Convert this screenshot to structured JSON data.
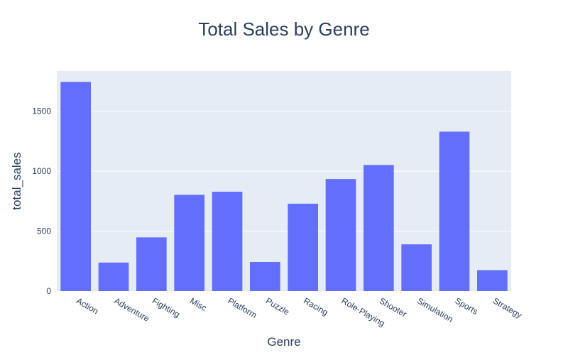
{
  "chart_data": {
    "type": "bar",
    "title": "Total Sales by Genre",
    "xlabel": "Genre",
    "ylabel": "total_sales",
    "categories": [
      "Action",
      "Adventure",
      "Fighting",
      "Misc",
      "Platform",
      "Puzzle",
      "Racing",
      "Role-Playing",
      "Shooter",
      "Simulation",
      "Sports",
      "Strategy"
    ],
    "values": [
      1745,
      238,
      448,
      803,
      829,
      243,
      729,
      935,
      1052,
      390,
      1330,
      175
    ],
    "ylim": [
      0,
      1836
    ],
    "yticks": [
      0,
      500,
      1000,
      1500
    ],
    "ytick_labels": [
      "0",
      "500",
      "1000",
      "1500"
    ],
    "grid": true,
    "legend": "none",
    "colors": {
      "bar": "#636efa",
      "plot_background": "#e5ecf6",
      "gridline": "#ffffff",
      "text": "#2a3f5f"
    }
  }
}
